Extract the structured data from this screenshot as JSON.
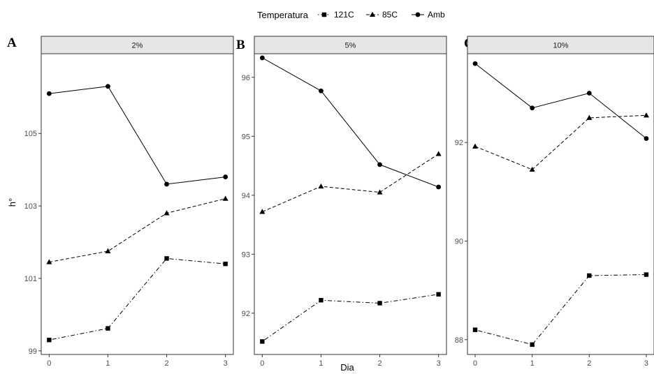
{
  "legend": {
    "title": "Temperatura",
    "entries": [
      {
        "label": "121C",
        "marker": "square",
        "dash": "dotdash"
      },
      {
        "label": "85C",
        "marker": "triangle",
        "dash": "dashed"
      },
      {
        "label": "Amb",
        "marker": "circle",
        "dash": "solid"
      }
    ]
  },
  "xlabel": "Dia",
  "ylabel": "h°",
  "chart_data": [
    {
      "type": "line",
      "panel_letter": "A",
      "strip_label": "2%",
      "x": [
        0,
        1,
        2,
        3
      ],
      "xticks": [
        "0",
        "1",
        "2",
        "3"
      ],
      "ylim": [
        98.9,
        107.2
      ],
      "yticks": [
        99,
        101,
        103,
        105
      ],
      "ytick_labels": [
        "99",
        "101",
        "103",
        "105"
      ],
      "series": [
        {
          "name": "121C",
          "values": [
            99.3,
            99.62,
            101.55,
            101.4
          ]
        },
        {
          "name": "85C",
          "values": [
            101.45,
            101.75,
            102.8,
            103.2
          ]
        },
        {
          "name": "Amb",
          "values": [
            106.1,
            106.3,
            103.6,
            103.8
          ]
        }
      ]
    },
    {
      "type": "line",
      "panel_letter": "B",
      "strip_label": "5%",
      "x": [
        0,
        1,
        2,
        3
      ],
      "xticks": [
        "0",
        "1",
        "2",
        "3"
      ],
      "ylim": [
        91.3,
        96.4
      ],
      "yticks": [
        92,
        93,
        94,
        95,
        96
      ],
      "ytick_labels": [
        "92",
        "93",
        "94",
        "95",
        "96"
      ],
      "series": [
        {
          "name": "121C",
          "values": [
            91.52,
            92.22,
            92.17,
            92.32
          ]
        },
        {
          "name": "85C",
          "values": [
            93.72,
            94.15,
            94.05,
            94.7
          ]
        },
        {
          "name": "Amb",
          "values": [
            96.33,
            95.77,
            94.52,
            94.14
          ]
        }
      ]
    },
    {
      "type": "line",
      "panel_letter": "C",
      "strip_label": "10%",
      "x": [
        0,
        1,
        2,
        3
      ],
      "xticks": [
        "0",
        "1",
        "2",
        "3"
      ],
      "ylim": [
        87.7,
        93.8
      ],
      "yticks": [
        88,
        90,
        92
      ],
      "ytick_labels": [
        "88",
        "90",
        "92"
      ],
      "series": [
        {
          "name": "121C",
          "values": [
            88.2,
            87.9,
            89.3,
            89.32
          ]
        },
        {
          "name": "85C",
          "values": [
            91.92,
            91.45,
            92.5,
            92.55
          ]
        },
        {
          "name": "Amb",
          "values": [
            93.6,
            92.7,
            93.0,
            92.08
          ]
        }
      ]
    }
  ]
}
